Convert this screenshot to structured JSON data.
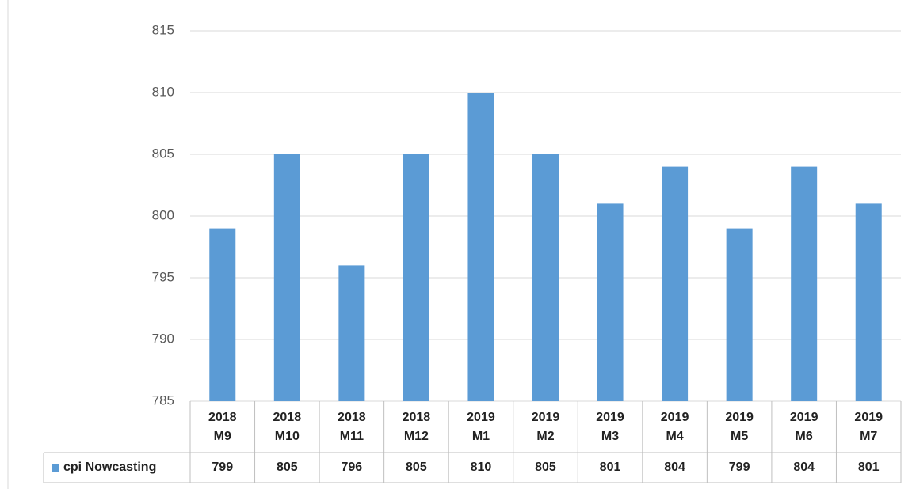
{
  "chart_data": {
    "type": "bar",
    "categories": [
      "2018 M9",
      "2018 M10",
      "2018 M11",
      "2018 M12",
      "2019 M1",
      "2019 M2",
      "2019 M3",
      "2019 M4",
      "2019 M5",
      "2019 M6",
      "2019 M7"
    ],
    "series": [
      {
        "name": "cpi Nowcasting",
        "color": "#5b9bd5",
        "values": [
          799,
          805,
          796,
          805,
          810,
          805,
          801,
          804,
          799,
          804,
          801
        ]
      }
    ],
    "ylim": [
      785,
      815
    ],
    "yticks": [
      785,
      790,
      795,
      800,
      805,
      810,
      815
    ],
    "grid": true,
    "data_table": true
  }
}
